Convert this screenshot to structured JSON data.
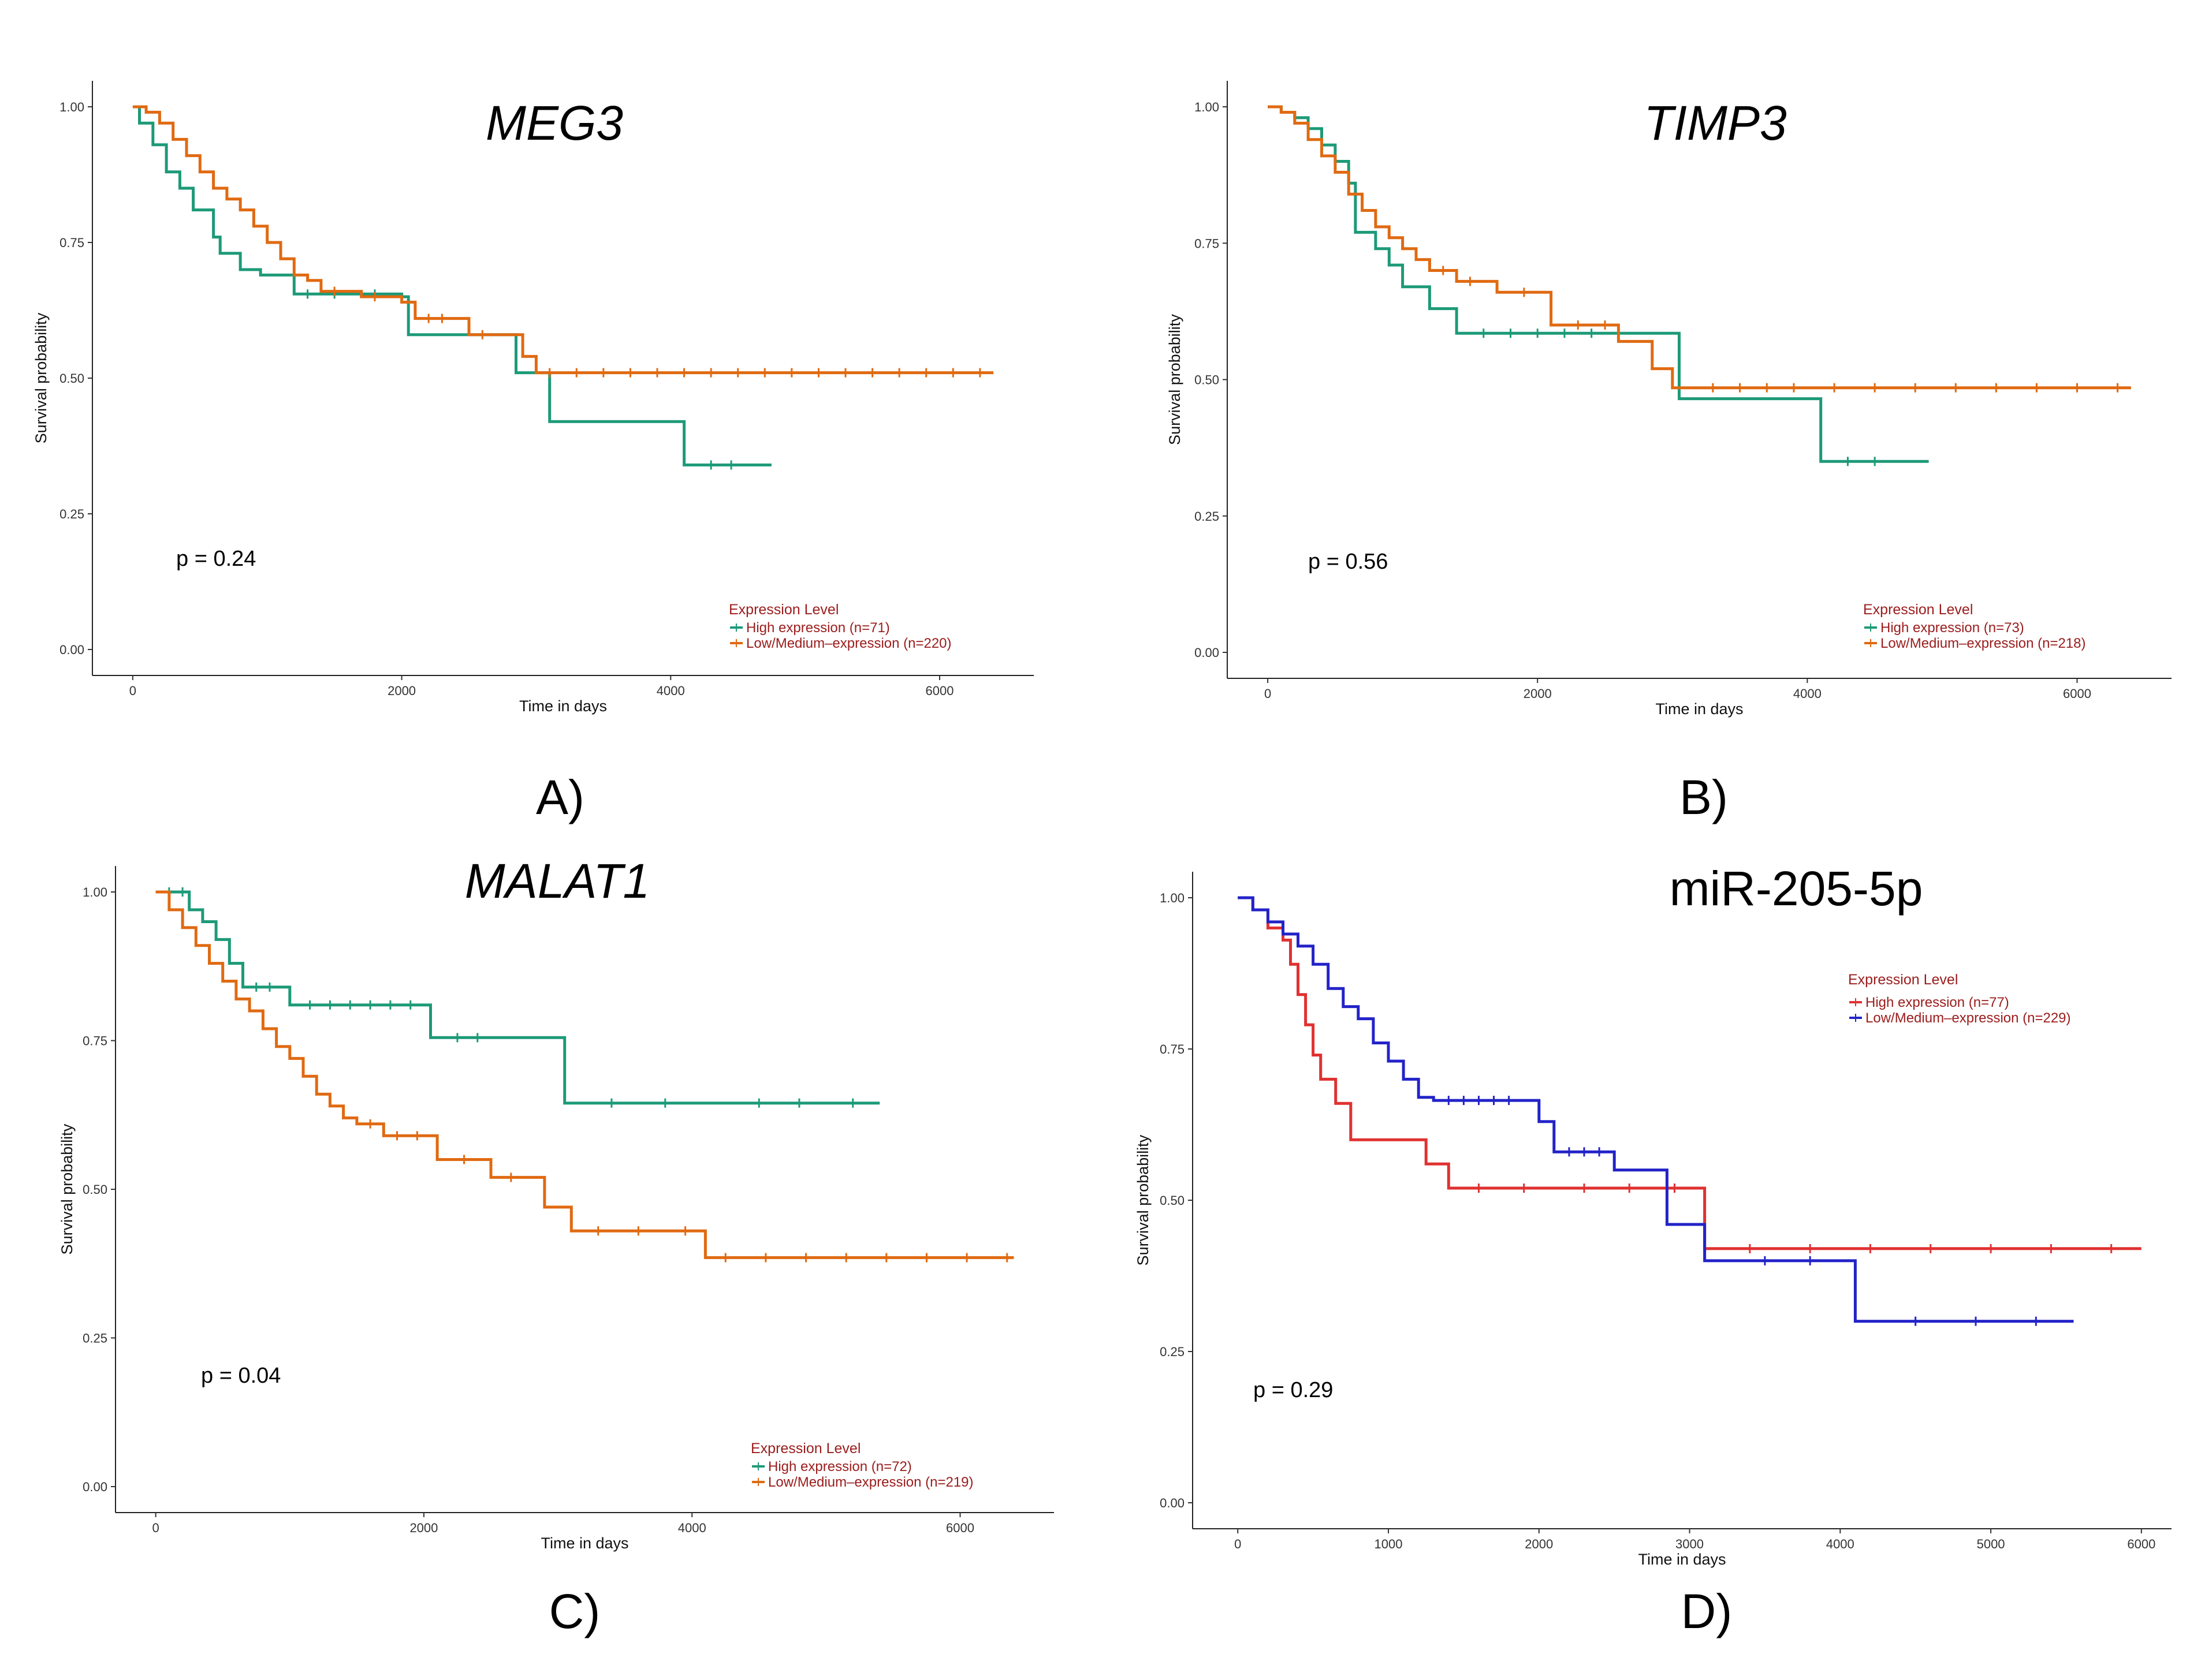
{
  "chart_data": [
    {
      "type": "line",
      "subtype": "kaplan-meier",
      "panel_label": "A)",
      "title": "MEG3",
      "title_italic": true,
      "xlabel": "Time in days",
      "ylabel": "Survival probability",
      "xlim": [
        -300,
        6700
      ],
      "ylim": [
        0,
        1
      ],
      "xticks": [
        0,
        2000,
        4000,
        6000
      ],
      "xtick_labels": [
        "0",
        "2000",
        "4000",
        "6000"
      ],
      "yticks": [
        0,
        0.25,
        0.5,
        0.75,
        1.0
      ],
      "ytick_labels": [
        "0.00",
        "0.25",
        "0.50",
        "0.75",
        "1.00"
      ],
      "p_value": "p = 0.24",
      "legend": {
        "title": "Expression Level",
        "position": "bottom-right"
      },
      "series": [
        {
          "name": "High expression (n=71)",
          "color": "#1d9a78",
          "x": [
            0,
            50,
            150,
            250,
            350,
            450,
            600,
            650,
            800,
            950,
            1200,
            1600,
            2000,
            2050,
            2850,
            3100,
            4100,
            4750
          ],
          "y": [
            1.0,
            0.97,
            0.93,
            0.88,
            0.85,
            0.81,
            0.76,
            0.73,
            0.7,
            0.69,
            0.655,
            0.655,
            0.65,
            0.58,
            0.51,
            0.42,
            0.34,
            0.34
          ],
          "censored_x": [
            1300,
            1500,
            1800,
            4300,
            4450
          ]
        },
        {
          "name": "Low/Medium–expression (n=220)",
          "color": "#e06a12",
          "x": [
            0,
            100,
            200,
            300,
            400,
            500,
            600,
            700,
            800,
            900,
            1000,
            1100,
            1200,
            1300,
            1400,
            1700,
            2000,
            2100,
            2500,
            2900,
            3000,
            6400
          ],
          "y": [
            1.0,
            0.99,
            0.97,
            0.94,
            0.91,
            0.88,
            0.85,
            0.83,
            0.81,
            0.78,
            0.75,
            0.72,
            0.69,
            0.68,
            0.66,
            0.65,
            0.64,
            0.61,
            0.58,
            0.54,
            0.51,
            0.51
          ],
          "censored_x": [
            1500,
            1800,
            2200,
            2300,
            2600,
            3100,
            3300,
            3500,
            3700,
            3900,
            4100,
            4300,
            4500,
            4700,
            4900,
            5100,
            5300,
            5500,
            5700,
            5900,
            6100,
            6300
          ]
        }
      ]
    },
    {
      "type": "line",
      "subtype": "kaplan-meier",
      "panel_label": "B)",
      "title": "TIMP3",
      "title_italic": true,
      "xlabel": "Time in days",
      "ylabel": "Survival probability",
      "xlim": [
        -300,
        6700
      ],
      "ylim": [
        0,
        1
      ],
      "xticks": [
        0,
        2000,
        4000,
        6000
      ],
      "xtick_labels": [
        "0",
        "2000",
        "4000",
        "6000"
      ],
      "yticks": [
        0,
        0.25,
        0.5,
        0.75,
        1.0
      ],
      "ytick_labels": [
        "0.00",
        "0.25",
        "0.50",
        "0.75",
        "1.00"
      ],
      "p_value": "p = 0.56",
      "legend": {
        "title": "Expression Level",
        "position": "bottom-right"
      },
      "series": [
        {
          "name": "High expression (n=73)",
          "color": "#1d9a78",
          "x": [
            0,
            100,
            200,
            300,
            400,
            500,
            600,
            650,
            800,
            900,
            1000,
            1200,
            1400,
            3050,
            4100,
            4900
          ],
          "y": [
            1.0,
            0.99,
            0.98,
            0.96,
            0.93,
            0.9,
            0.86,
            0.77,
            0.74,
            0.71,
            0.67,
            0.63,
            0.585,
            0.465,
            0.35,
            0.35
          ],
          "censored_x": [
            1600,
            1800,
            2000,
            2200,
            2400,
            4300,
            4500
          ]
        },
        {
          "name": "Low/Medium–expression (n=218)",
          "color": "#e06a12",
          "x": [
            0,
            100,
            200,
            300,
            400,
            500,
            600,
            700,
            800,
            900,
            1000,
            1100,
            1200,
            1400,
            1700,
            2100,
            2600,
            2850,
            3000,
            6400
          ],
          "y": [
            1.0,
            0.99,
            0.97,
            0.94,
            0.91,
            0.88,
            0.84,
            0.81,
            0.78,
            0.76,
            0.74,
            0.72,
            0.7,
            0.68,
            0.66,
            0.6,
            0.57,
            0.52,
            0.485,
            0.485
          ],
          "censored_x": [
            1300,
            1500,
            1900,
            2300,
            2500,
            3300,
            3500,
            3700,
            3900,
            4200,
            4500,
            4800,
            5100,
            5400,
            5700,
            6000,
            6300
          ]
        }
      ]
    },
    {
      "type": "line",
      "subtype": "kaplan-meier",
      "panel_label": "C)",
      "title": "MALAT1",
      "title_italic": true,
      "xlabel": "Time in days",
      "ylabel": "Survival probability",
      "xlim": [
        -300,
        6700
      ],
      "ylim": [
        0,
        1
      ],
      "xticks": [
        0,
        2000,
        4000,
        6000
      ],
      "xtick_labels": [
        "0",
        "2000",
        "4000",
        "6000"
      ],
      "yticks": [
        0,
        0.25,
        0.5,
        0.75,
        1.0
      ],
      "ytick_labels": [
        "0.00",
        "0.25",
        "0.50",
        "0.75",
        "1.00"
      ],
      "p_value": "p = 0.04",
      "legend": {
        "title": "Expression Level",
        "position": "bottom-right"
      },
      "series": [
        {
          "name": "High expression (n=72)",
          "color": "#1d9a78",
          "x": [
            0,
            250,
            350,
            450,
            550,
            650,
            1000,
            2050,
            3050,
            5400
          ],
          "y": [
            1.0,
            0.97,
            0.95,
            0.92,
            0.88,
            0.84,
            0.81,
            0.755,
            0.645,
            0.645
          ],
          "censored_x": [
            100,
            200,
            750,
            850,
            1150,
            1300,
            1450,
            1600,
            1750,
            1900,
            2250,
            2400,
            3400,
            3800,
            4500,
            4800,
            5200
          ]
        },
        {
          "name": "Low/Medium–expression (n=219)",
          "color": "#e06a12",
          "x": [
            0,
            100,
            200,
            300,
            400,
            500,
            600,
            700,
            800,
            900,
            1000,
            1100,
            1200,
            1300,
            1400,
            1500,
            1700,
            2100,
            2500,
            2900,
            3100,
            4100,
            6400
          ],
          "y": [
            1.0,
            0.97,
            0.94,
            0.91,
            0.88,
            0.85,
            0.82,
            0.8,
            0.77,
            0.74,
            0.72,
            0.69,
            0.66,
            0.64,
            0.62,
            0.61,
            0.59,
            0.55,
            0.52,
            0.47,
            0.43,
            0.385,
            0.385
          ],
          "censored_x": [
            1600,
            1800,
            1950,
            2300,
            2650,
            3300,
            3600,
            3950,
            4250,
            4550,
            4850,
            5150,
            5450,
            5750,
            6050,
            6350
          ]
        }
      ]
    },
    {
      "type": "line",
      "subtype": "kaplan-meier",
      "panel_label": "D)",
      "title": "miR-205-5p",
      "title_italic": false,
      "xlabel": "Time in days",
      "ylabel": "Survival probability",
      "xlim": [
        -300,
        6200
      ],
      "ylim": [
        0,
        1
      ],
      "xticks": [
        0,
        1000,
        2000,
        3000,
        4000,
        5000,
        6000
      ],
      "xtick_labels": [
        "0",
        "1000",
        "2000",
        "3000",
        "4000",
        "5000",
        "6000"
      ],
      "yticks": [
        0,
        0.25,
        0.5,
        0.75,
        1.0
      ],
      "ytick_labels": [
        "0.00",
        "0.25",
        "0.50",
        "0.75",
        "1.00"
      ],
      "p_value": "p = 0.29",
      "legend": {
        "title": "Expression Level",
        "position": "top-right"
      },
      "series": [
        {
          "name": "High expression (n=77)",
          "color": "#e03131",
          "x": [
            0,
            100,
            200,
            300,
            350,
            400,
            450,
            500,
            550,
            650,
            750,
            1000,
            1250,
            1400,
            3050,
            3100,
            6000
          ],
          "y": [
            1.0,
            0.98,
            0.95,
            0.93,
            0.89,
            0.84,
            0.79,
            0.74,
            0.7,
            0.66,
            0.6,
            0.6,
            0.56,
            0.52,
            0.52,
            0.42,
            0.42
          ],
          "censored_x": [
            1600,
            1900,
            2300,
            2600,
            2900,
            3400,
            3800,
            4200,
            4600,
            5000,
            5400,
            5800
          ]
        },
        {
          "name": "Low/Medium–expression (n=229)",
          "color": "#2323c8",
          "x": [
            0,
            100,
            200,
            300,
            400,
            500,
            600,
            700,
            800,
            900,
            1000,
            1100,
            1200,
            1300,
            2000,
            2100,
            2500,
            2850,
            3100,
            4100,
            5550
          ],
          "y": [
            1.0,
            0.98,
            0.96,
            0.94,
            0.92,
            0.89,
            0.85,
            0.82,
            0.8,
            0.76,
            0.73,
            0.7,
            0.67,
            0.665,
            0.63,
            0.58,
            0.55,
            0.46,
            0.4,
            0.3,
            0.3
          ],
          "censored_x": [
            1400,
            1500,
            1600,
            1700,
            1800,
            2200,
            2300,
            2400,
            3500,
            3800,
            4500,
            4900,
            5300
          ]
        }
      ]
    }
  ]
}
